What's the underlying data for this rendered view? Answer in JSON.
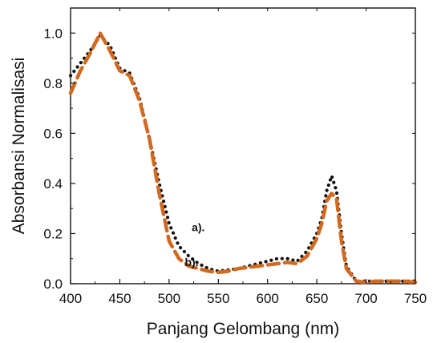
{
  "chart_data": {
    "type": "line",
    "title": "",
    "xlabel": "Panjang Gelombang (nm)",
    "ylabel": "Absorbansi Normalisasi",
    "xlim": [
      400,
      750
    ],
    "ylim": [
      0.0,
      1.1
    ],
    "grid": false,
    "x_ticks": [
      400,
      450,
      500,
      550,
      600,
      650,
      700,
      750
    ],
    "x_tick_labels": [
      "400",
      "450",
      "500",
      "550",
      "600",
      "650",
      "700",
      "750"
    ],
    "y_ticks": [
      0.0,
      0.2,
      0.4,
      0.6,
      0.8,
      1.0
    ],
    "y_tick_labels": [
      "0.0",
      "0.2",
      "0.4",
      "0.6",
      "0.8",
      "1.0"
    ],
    "annotations": [
      {
        "text": "a).",
        "x": 523,
        "y": 0.21
      },
      {
        "text": "b).",
        "x": 516,
        "y": 0.07
      }
    ],
    "series": [
      {
        "label": "a).",
        "color": "#111111",
        "style": "dotted",
        "x": [
          400,
          410,
          420,
          430,
          440,
          450,
          460,
          470,
          480,
          490,
          500,
          510,
          520,
          530,
          540,
          550,
          560,
          570,
          580,
          590,
          600,
          610,
          620,
          630,
          640,
          650,
          655,
          660,
          665,
          670,
          675,
          680,
          690,
          700,
          710,
          720,
          730,
          740,
          750
        ],
        "y": [
          0.83,
          0.88,
          0.93,
          0.99,
          0.95,
          0.86,
          0.84,
          0.74,
          0.58,
          0.4,
          0.24,
          0.15,
          0.11,
          0.08,
          0.06,
          0.05,
          0.055,
          0.06,
          0.07,
          0.08,
          0.09,
          0.1,
          0.1,
          0.09,
          0.13,
          0.2,
          0.26,
          0.37,
          0.43,
          0.37,
          0.2,
          0.07,
          0.01,
          0.01,
          0.01,
          0.01,
          0.01,
          0.01,
          0.01
        ]
      },
      {
        "label": "b).",
        "color": "#D2691E",
        "style": "dashed",
        "x": [
          400,
          410,
          420,
          430,
          440,
          450,
          460,
          470,
          480,
          490,
          500,
          510,
          520,
          530,
          540,
          550,
          560,
          570,
          580,
          590,
          600,
          610,
          620,
          630,
          640,
          650,
          655,
          660,
          665,
          670,
          675,
          680,
          690,
          700,
          710,
          720,
          730,
          740,
          750
        ],
        "y": [
          0.76,
          0.85,
          0.92,
          1.0,
          0.93,
          0.85,
          0.83,
          0.73,
          0.58,
          0.36,
          0.17,
          0.1,
          0.07,
          0.06,
          0.05,
          0.045,
          0.05,
          0.06,
          0.065,
          0.07,
          0.075,
          0.08,
          0.085,
          0.08,
          0.11,
          0.18,
          0.24,
          0.33,
          0.36,
          0.34,
          0.17,
          0.06,
          0.01,
          0.005,
          0.01,
          0.01,
          0.01,
          0.01,
          0.005
        ]
      }
    ]
  }
}
